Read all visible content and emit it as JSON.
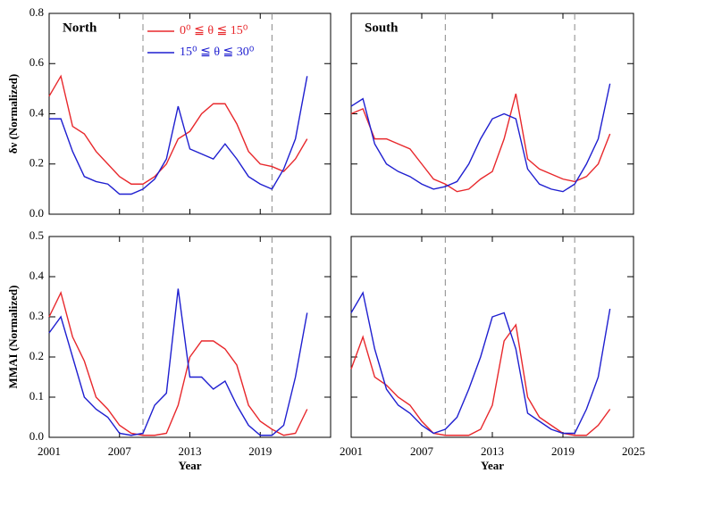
{
  "chart_data": [
    {
      "type": "line",
      "title": "North",
      "ylabel": "δν (Normalized)",
      "x": [
        2001,
        2002,
        2003,
        2004,
        2005,
        2006,
        2007,
        2008,
        2009,
        2010,
        2011,
        2012,
        2013,
        2014,
        2015,
        2016,
        2017,
        2018,
        2019,
        2020,
        2021,
        2022,
        2023
      ],
      "series": [
        {
          "name": "0⁰ ≦ θ ≦ 15⁰",
          "color": "#e8282c",
          "values": [
            0.47,
            0.55,
            0.35,
            0.32,
            0.25,
            0.2,
            0.15,
            0.12,
            0.12,
            0.15,
            0.2,
            0.3,
            0.33,
            0.4,
            0.44,
            0.44,
            0.36,
            0.25,
            0.2,
            0.19,
            0.17,
            0.22,
            0.3
          ]
        },
        {
          "name": "15⁰ ≦ θ ≦ 30⁰",
          "color": "#1f1fd0",
          "values": [
            0.38,
            0.38,
            0.25,
            0.15,
            0.13,
            0.12,
            0.08,
            0.08,
            0.1,
            0.14,
            0.22,
            0.43,
            0.26,
            0.24,
            0.22,
            0.28,
            0.22,
            0.15,
            0.12,
            0.1,
            0.18,
            0.3,
            0.55
          ]
        }
      ],
      "xlim": [
        2001,
        2025
      ],
      "xticks": [
        2001,
        2007,
        2013,
        2019,
        2025
      ],
      "ylim": [
        0,
        0.8
      ],
      "yticks": [
        {
          "value": 0,
          "label": "0.0"
        },
        0.2,
        0.4,
        0.6,
        0.8
      ],
      "vlines": [
        2009,
        2020
      ],
      "legend": "upper center"
    },
    {
      "type": "line",
      "title": "South",
      "x": [
        2001,
        2002,
        2003,
        2004,
        2005,
        2006,
        2007,
        2008,
        2009,
        2010,
        2011,
        2012,
        2013,
        2014,
        2015,
        2016,
        2017,
        2018,
        2019,
        2020,
        2021,
        2022,
        2023
      ],
      "series": [
        {
          "color": "#e8282c",
          "values": [
            0.4,
            0.42,
            0.3,
            0.3,
            0.28,
            0.26,
            0.2,
            0.14,
            0.12,
            0.09,
            0.1,
            0.14,
            0.17,
            0.3,
            0.48,
            0.22,
            0.18,
            0.16,
            0.14,
            0.13,
            0.15,
            0.2,
            0.32
          ]
        },
        {
          "color": "#1f1fd0",
          "values": [
            0.43,
            0.46,
            0.28,
            0.2,
            0.17,
            0.15,
            0.12,
            0.1,
            0.11,
            0.13,
            0.2,
            0.3,
            0.38,
            0.4,
            0.38,
            0.18,
            0.12,
            0.1,
            0.09,
            0.12,
            0.2,
            0.3,
            0.52
          ]
        }
      ],
      "xlim": [
        2001,
        2025
      ],
      "xticks": [
        2001,
        2007,
        2013,
        2019,
        2025
      ],
      "ylim": [
        0,
        0.8
      ],
      "yticks": [
        0,
        0.2,
        0.4,
        0.6,
        0.8
      ],
      "vlines": [
        2009,
        2020
      ]
    },
    {
      "type": "line",
      "ylabel": "MMAI (Normalized)",
      "xlabel": "Year",
      "x": [
        2001,
        2002,
        2003,
        2004,
        2005,
        2006,
        2007,
        2008,
        2009,
        2010,
        2011,
        2012,
        2013,
        2014,
        2015,
        2016,
        2017,
        2018,
        2019,
        2020,
        2021,
        2022,
        2023
      ],
      "series": [
        {
          "color": "#e8282c",
          "values": [
            0.3,
            0.36,
            0.25,
            0.19,
            0.1,
            0.07,
            0.03,
            0.01,
            0.005,
            0.005,
            0.01,
            0.08,
            0.2,
            0.24,
            0.24,
            0.22,
            0.18,
            0.08,
            0.04,
            0.02,
            0.005,
            0.01,
            0.07
          ]
        },
        {
          "color": "#1f1fd0",
          "values": [
            0.26,
            0.3,
            0.2,
            0.1,
            0.07,
            0.05,
            0.01,
            0.005,
            0.01,
            0.08,
            0.11,
            0.37,
            0.15,
            0.15,
            0.12,
            0.14,
            0.08,
            0.03,
            0.005,
            0.005,
            0.03,
            0.15,
            0.31
          ]
        }
      ],
      "xlim": [
        2001,
        2025
      ],
      "xticks": [
        2001,
        2007,
        2013,
        2019
      ],
      "ylim": [
        0,
        0.5
      ],
      "yticks": [
        {
          "value": 0,
          "label": "0.0"
        },
        0.1,
        0.2,
        0.3,
        0.4,
        0.5
      ],
      "vlines": [
        2009,
        2020
      ]
    },
    {
      "type": "line",
      "xlabel": "Year",
      "x": [
        2001,
        2002,
        2003,
        2004,
        2005,
        2006,
        2007,
        2008,
        2009,
        2010,
        2011,
        2012,
        2013,
        2014,
        2015,
        2016,
        2017,
        2018,
        2019,
        2020,
        2021,
        2022,
        2023
      ],
      "series": [
        {
          "color": "#e8282c",
          "values": [
            0.17,
            0.25,
            0.15,
            0.13,
            0.1,
            0.08,
            0.04,
            0.01,
            0.005,
            0.005,
            0.005,
            0.02,
            0.08,
            0.24,
            0.28,
            0.1,
            0.05,
            0.03,
            0.01,
            0.005,
            0.005,
            0.03,
            0.07
          ]
        },
        {
          "color": "#1f1fd0",
          "values": [
            0.31,
            0.36,
            0.22,
            0.12,
            0.08,
            0.06,
            0.03,
            0.01,
            0.02,
            0.05,
            0.12,
            0.2,
            0.3,
            0.31,
            0.22,
            0.06,
            0.04,
            0.02,
            0.01,
            0.01,
            0.07,
            0.15,
            0.32
          ]
        }
      ],
      "xlim": [
        2001,
        2025
      ],
      "xticks": [
        2001,
        2007,
        2013,
        2019,
        2025
      ],
      "ylim": [
        0,
        0.5
      ],
      "yticks": [
        0,
        0.1,
        0.2,
        0.3,
        0.4,
        0.5
      ],
      "vlines": [
        2009,
        2020
      ]
    }
  ]
}
